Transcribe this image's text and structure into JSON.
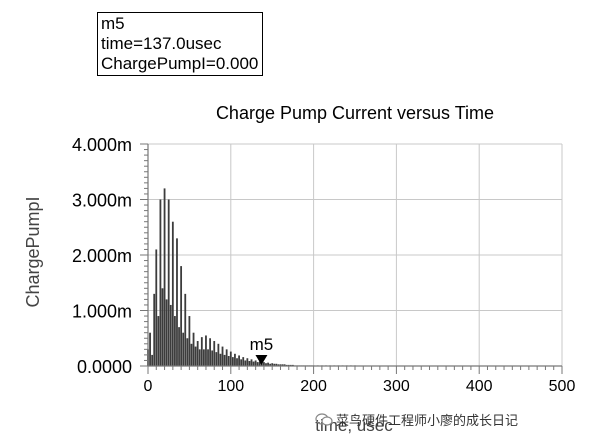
{
  "marker_box": {
    "name": "m5",
    "time_line": "time=137.0usec",
    "value_line": "ChargePumpI=0.000"
  },
  "watermark": {
    "text": "菜鸟硬件工程师小廖的成长日记"
  },
  "chart_data": {
    "type": "bar",
    "title": "Charge Pump Current versus Time",
    "xlabel": "time, usec",
    "ylabel": "ChargePumpI",
    "xlim": [
      0,
      500
    ],
    "ylim": [
      0,
      0.004
    ],
    "x_ticks": [
      "0",
      "100",
      "200",
      "300",
      "400",
      "500"
    ],
    "y_ticks": [
      "0.0000",
      "1.000m",
      "2.000m",
      "3.000m",
      "4.000m"
    ],
    "grid": true,
    "bar_color": "#3c3c3c",
    "marker": {
      "label": "m5",
      "x": 137.0,
      "y": 0.0
    },
    "series": [
      {
        "x": [
          0,
          2.5,
          5,
          7.5,
          10,
          12.5,
          15,
          17.5,
          20,
          22.5,
          25,
          27.5,
          30,
          32.5,
          35,
          37.5,
          40,
          42.5,
          45,
          47.5,
          50,
          52.5,
          55,
          57.5,
          60,
          62.5,
          65,
          67.5,
          70,
          72.5,
          75,
          77.5,
          80,
          82.5,
          85,
          87.5,
          90,
          92.5,
          95,
          97.5,
          100,
          102.5,
          105,
          107.5,
          110,
          112.5,
          115,
          117.5,
          120,
          122.5,
          125,
          127.5,
          130,
          132.5,
          135,
          137.5,
          140,
          142.5,
          145,
          147.5,
          150,
          152.5,
          155,
          157.5,
          160,
          162.5,
          165,
          167.5,
          170,
          172.5,
          175,
          177.5,
          180,
          182.5,
          185,
          187.5,
          190,
          192.5,
          195,
          197.5,
          200,
          205,
          210,
          215,
          220,
          225,
          230,
          235,
          240,
          245,
          250
        ],
        "y": [
          0.0003,
          0.0006,
          0.0002,
          0.0013,
          0.0021,
          0.0009,
          0.003,
          0.0014,
          0.0032,
          0.0012,
          0.003,
          0.0011,
          0.0026,
          0.0009,
          0.0023,
          0.0007,
          0.0018,
          0.0006,
          0.0013,
          0.0005,
          0.0009,
          0.0004,
          0.0006,
          0.00035,
          0.00045,
          0.0003,
          0.00052,
          0.0003,
          0.00055,
          0.0003,
          0.0005,
          0.00028,
          0.00045,
          0.00025,
          0.0004,
          0.00022,
          0.00035,
          0.0002,
          0.0003,
          0.00018,
          0.00026,
          0.00016,
          0.00022,
          0.00014,
          0.00019,
          0.00012,
          0.00016,
          0.0001,
          0.00014,
          9e-05,
          0.00012,
          8e-05,
          0.0001,
          7e-05,
          8e-05,
          6e-05,
          7e-05,
          5e-05,
          6e-05,
          4e-05,
          5e-05,
          4e-05,
          4e-05,
          3e-05,
          3e-05,
          3e-05,
          3e-05,
          2e-05,
          2e-05,
          2e-05,
          2e-05,
          1e-05,
          1e-05,
          1e-05,
          1e-05,
          1e-05,
          1e-05,
          1e-05,
          1e-05,
          1e-05,
          1e-05,
          5e-06,
          5e-06,
          5e-06,
          5e-06,
          5e-06,
          5e-06,
          5e-06,
          5e-06,
          5e-06,
          5e-06
        ]
      }
    ]
  }
}
